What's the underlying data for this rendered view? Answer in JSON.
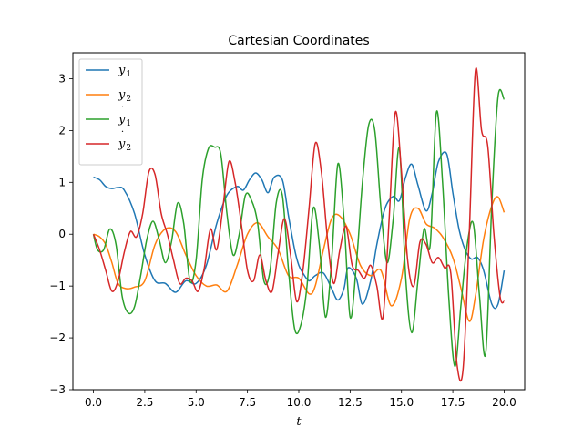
{
  "chart_data": {
    "type": "line",
    "title": "Cartesian Coordinates",
    "xlabel": "t",
    "ylabel": "",
    "xlim": [
      -1.0,
      21.0
    ],
    "ylim": [
      -3.0,
      3.5
    ],
    "xticks": [
      0.0,
      2.5,
      5.0,
      7.5,
      10.0,
      12.5,
      15.0,
      17.5,
      20.0
    ],
    "xtick_labels": [
      "0.0",
      "2.5",
      "5.0",
      "7.5",
      "10.0",
      "12.5",
      "15.0",
      "17.5",
      "20.0"
    ],
    "yticks": [
      -3,
      -2,
      -1,
      0,
      1,
      2,
      3
    ],
    "ytick_labels": [
      "−3",
      "−2",
      "−1",
      "0",
      "1",
      "2",
      "3"
    ],
    "grid": false,
    "legend": "top-left",
    "series": [
      {
        "name": "y1",
        "base": "y",
        "sub": "1",
        "dot": false,
        "color": "#1f77b4",
        "x": [
          0,
          0.3,
          0.6,
          0.9,
          1.2,
          1.5,
          2.0,
          2.5,
          3.0,
          3.5,
          4.0,
          4.5,
          5.0,
          5.5,
          6.0,
          6.5,
          7.0,
          7.3,
          7.6,
          7.9,
          8.2,
          8.5,
          8.8,
          9.2,
          9.5,
          9.8,
          10.0,
          10.2,
          10.5,
          10.8,
          11.2,
          11.6,
          11.9,
          12.2,
          12.4,
          12.8,
          13.1,
          13.5,
          13.8,
          14.2,
          14.6,
          14.9,
          15.2,
          15.5,
          15.8,
          16.2,
          16.5,
          16.8,
          17.2,
          17.5,
          17.8,
          18.1,
          18.4,
          18.7,
          19.0,
          19.4,
          19.7,
          20.0
        ],
        "y": [
          1.1,
          1.05,
          0.92,
          0.88,
          0.9,
          0.85,
          0.4,
          -0.4,
          -0.9,
          -0.95,
          -1.12,
          -0.9,
          -0.95,
          -0.6,
          0.2,
          0.75,
          0.92,
          0.85,
          1.05,
          1.18,
          1.05,
          0.8,
          1.1,
          1.05,
          0.35,
          -0.3,
          -0.6,
          -0.75,
          -0.9,
          -0.8,
          -0.75,
          -1.05,
          -1.27,
          -1.05,
          -0.65,
          -0.85,
          -1.35,
          -0.9,
          -0.2,
          0.5,
          0.73,
          0.65,
          1.1,
          1.35,
          0.95,
          0.45,
          0.8,
          1.4,
          1.55,
          0.8,
          0.1,
          -0.3,
          -0.48,
          -0.45,
          -0.7,
          -1.35,
          -1.35,
          -0.7
        ]
      },
      {
        "name": "y2",
        "base": "y",
        "sub": "2",
        "dot": false,
        "color": "#ff7f0e",
        "x": [
          0,
          0.3,
          0.6,
          0.9,
          1.2,
          1.6,
          2.0,
          2.5,
          3.0,
          3.5,
          4.0,
          4.5,
          5.0,
          5.5,
          6.0,
          6.5,
          7.0,
          7.5,
          8.0,
          8.5,
          9.0,
          9.5,
          10.0,
          10.5,
          10.8,
          11.2,
          11.6,
          12.0,
          12.5,
          13.0,
          13.5,
          14.0,
          14.5,
          15.0,
          15.4,
          15.8,
          16.2,
          16.6,
          17.0,
          17.5,
          17.9,
          18.3,
          18.6,
          19.0,
          19.4,
          19.7,
          20.0
        ],
        "y": [
          0.0,
          -0.05,
          -0.2,
          -0.55,
          -0.95,
          -1.05,
          -1.02,
          -0.9,
          -0.2,
          0.1,
          0.05,
          -0.4,
          -0.8,
          -1.0,
          -0.98,
          -1.1,
          -0.6,
          0.0,
          0.22,
          -0.05,
          -0.3,
          -0.8,
          -0.85,
          -1.15,
          -1.0,
          -0.3,
          0.3,
          0.35,
          0.0,
          -0.6,
          -0.8,
          -0.7,
          -1.38,
          -0.85,
          0.3,
          0.5,
          0.2,
          0.12,
          -0.05,
          -0.45,
          -1.05,
          -1.68,
          -1.2,
          -0.1,
          0.55,
          0.72,
          0.42
        ]
      },
      {
        "name": "y1-dot",
        "base": "y",
        "sub": "1",
        "dot": true,
        "color": "#2ca02c",
        "x": [
          0,
          0.2,
          0.5,
          0.8,
          1.1,
          1.4,
          1.7,
          2.0,
          2.3,
          2.6,
          2.9,
          3.2,
          3.5,
          3.8,
          4.1,
          4.4,
          4.7,
          5.0,
          5.3,
          5.6,
          5.9,
          6.2,
          6.5,
          6.8,
          7.1,
          7.4,
          7.7,
          8.0,
          8.3,
          8.6,
          8.9,
          9.2,
          9.5,
          9.8,
          10.1,
          10.4,
          10.7,
          11.0,
          11.3,
          11.6,
          11.9,
          12.2,
          12.5,
          12.8,
          13.1,
          13.4,
          13.7,
          14.0,
          14.3,
          14.6,
          14.9,
          15.2,
          15.5,
          15.8,
          16.1,
          16.4,
          16.7,
          17.0,
          17.3,
          17.6,
          17.9,
          18.2,
          18.5,
          18.8,
          19.1,
          19.4,
          19.7,
          20.0
        ],
        "y": [
          0.0,
          -0.3,
          -0.3,
          0.1,
          -0.2,
          -1.2,
          -1.52,
          -1.4,
          -0.8,
          -0.1,
          0.25,
          -0.1,
          -0.55,
          -0.15,
          0.6,
          0.2,
          -0.9,
          -0.5,
          1.05,
          1.65,
          1.68,
          1.55,
          0.4,
          -0.4,
          0.0,
          0.75,
          0.65,
          0.2,
          -0.9,
          -0.7,
          0.6,
          0.75,
          -0.7,
          -1.83,
          -1.75,
          -1.0,
          0.5,
          -0.2,
          -1.6,
          -0.5,
          1.35,
          0.3,
          -1.6,
          -0.6,
          1.0,
          2.1,
          2.0,
          0.5,
          -0.55,
          0.3,
          1.65,
          -0.8,
          -1.9,
          -0.9,
          0.1,
          -0.2,
          2.35,
          1.0,
          -1.2,
          -2.55,
          -1.35,
          -0.2,
          0.2,
          -1.2,
          -2.3,
          0.6,
          2.65,
          2.6
        ]
      },
      {
        "name": "y2-dot",
        "base": "y",
        "sub": "2",
        "dot": true,
        "color": "#d62728",
        "x": [
          0,
          0.3,
          0.6,
          0.9,
          1.2,
          1.5,
          1.8,
          2.1,
          2.4,
          2.7,
          3.0,
          3.3,
          3.6,
          3.9,
          4.2,
          4.5,
          4.8,
          5.1,
          5.4,
          5.7,
          6.0,
          6.3,
          6.6,
          6.9,
          7.2,
          7.5,
          7.8,
          8.1,
          8.4,
          8.7,
          9.0,
          9.3,
          9.6,
          9.9,
          10.2,
          10.5,
          10.8,
          11.1,
          11.4,
          11.7,
          12.0,
          12.3,
          12.6,
          12.9,
          13.2,
          13.5,
          13.8,
          14.1,
          14.4,
          14.7,
          15.0,
          15.3,
          15.6,
          15.9,
          16.2,
          16.5,
          16.8,
          17.1,
          17.4,
          17.7,
          18.0,
          18.3,
          18.6,
          18.9,
          19.2,
          19.5,
          19.8,
          20.0
        ],
        "y": [
          0.0,
          -0.3,
          -0.7,
          -1.1,
          -0.9,
          -0.35,
          0.05,
          -0.05,
          0.4,
          1.2,
          1.15,
          0.4,
          0.0,
          -0.5,
          -0.95,
          -0.85,
          -0.9,
          -1.1,
          -0.65,
          0.1,
          -0.3,
          0.5,
          1.4,
          1.0,
          0.2,
          -0.7,
          -0.9,
          -0.4,
          -0.9,
          -1.1,
          -0.35,
          0.3,
          -0.4,
          -1.3,
          -0.7,
          0.5,
          1.75,
          1.2,
          -0.1,
          -0.95,
          -0.3,
          0.15,
          -0.6,
          -0.7,
          -0.85,
          -0.6,
          -1.0,
          -1.6,
          0.3,
          2.35,
          1.2,
          -0.5,
          -1.0,
          -0.15,
          -0.2,
          -0.55,
          -0.45,
          -0.65,
          -0.75,
          -2.5,
          -2.6,
          0.0,
          3.15,
          2.0,
          1.7,
          0.0,
          -1.2,
          -1.3
        ]
      }
    ]
  }
}
